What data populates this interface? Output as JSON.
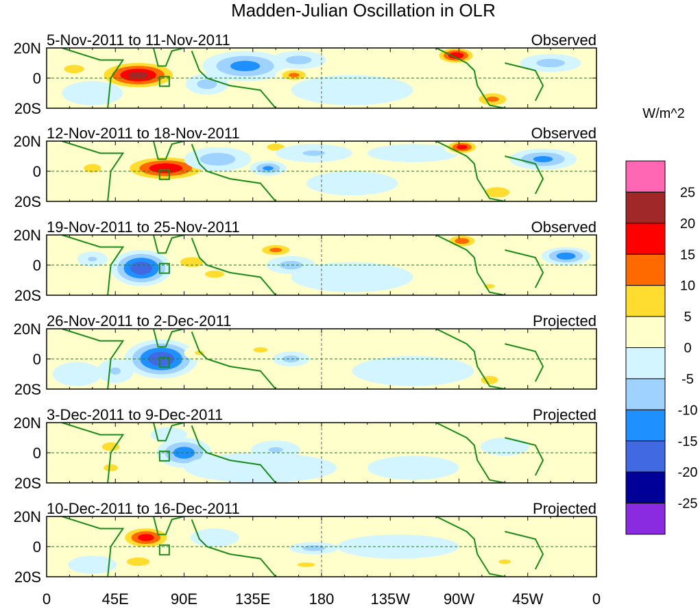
{
  "chart_data": {
    "type": "heatmap",
    "title": "Madden-Julian Oscillation in OLR",
    "units": "W/m^2",
    "x_ticks": [
      "0",
      "45E",
      "90E",
      "135E",
      "180",
      "135W",
      "90W",
      "45W",
      "0"
    ],
    "y_ticks": [
      "20N",
      "0",
      "20S"
    ],
    "xlim": [
      0,
      360
    ],
    "ylim": [
      -20,
      20
    ],
    "colorbar": {
      "labels": [
        "25",
        "20",
        "15",
        "10",
        "5",
        "0",
        "-5",
        "-10",
        "-15",
        "-20",
        "-25"
      ],
      "colors": [
        "#ff66b3",
        "#a02828",
        "#ff0000",
        "#ff6a00",
        "#ffdd30",
        "#ffffcc",
        "#d2f5ff",
        "#a0d2ff",
        "#1e90ff",
        "#4169e1",
        "#000099",
        "#8a2be2"
      ]
    },
    "panels": [
      {
        "date": "5-Nov-2011 to 11-Nov-2011",
        "status": "Observed",
        "blobs": [
          [
            60,
            2,
            28,
            10,
            22
          ],
          [
            18,
            6,
            14,
            6,
            8
          ],
          [
            130,
            8,
            28,
            10,
            -13
          ],
          [
            105,
            -4,
            14,
            7,
            -8
          ],
          [
            162,
            2,
            12,
            5,
            12
          ],
          [
            165,
            12,
            18,
            6,
            -8
          ],
          [
            268,
            15,
            14,
            6,
            20
          ],
          [
            292,
            -14,
            14,
            6,
            12
          ],
          [
            330,
            10,
            20,
            6,
            -8
          ],
          [
            200,
            -8,
            40,
            10,
            -3
          ],
          [
            30,
            -10,
            20,
            8,
            -4
          ]
        ]
      },
      {
        "date": "12-Nov-2011 to 18-Nov-2011",
        "status": "Observed",
        "blobs": [
          [
            78,
            2,
            30,
            9,
            20
          ],
          [
            30,
            2,
            12,
            6,
            8
          ],
          [
            112,
            8,
            22,
            8,
            -9
          ],
          [
            145,
            2,
            12,
            5,
            -12
          ],
          [
            150,
            16,
            10,
            4,
            10
          ],
          [
            175,
            12,
            25,
            6,
            -6
          ],
          [
            240,
            12,
            30,
            6,
            -4
          ],
          [
            272,
            16,
            12,
            5,
            18
          ],
          [
            325,
            8,
            22,
            7,
            -12
          ],
          [
            295,
            -14,
            14,
            6,
            10
          ],
          [
            200,
            -8,
            30,
            8,
            -3
          ]
        ]
      },
      {
        "date": "19-Nov-2011 to 25-Nov-2011",
        "status": "Observed",
        "blobs": [
          [
            62,
            -2,
            20,
            12,
            -20
          ],
          [
            30,
            4,
            10,
            5,
            -6
          ],
          [
            95,
            2,
            16,
            7,
            8
          ],
          [
            110,
            -6,
            16,
            6,
            7
          ],
          [
            150,
            10,
            14,
            5,
            12
          ],
          [
            160,
            0,
            16,
            6,
            -8
          ],
          [
            272,
            16,
            12,
            5,
            14
          ],
          [
            340,
            6,
            16,
            6,
            -14
          ],
          [
            290,
            -14,
            12,
            5,
            6
          ],
          [
            200,
            -8,
            40,
            10,
            -3
          ]
        ]
      },
      {
        "date": "26-Nov-2011 to 2-Dec-2011",
        "status": "Projected",
        "blobs": [
          [
            75,
            0,
            24,
            13,
            -20
          ],
          [
            45,
            -8,
            12,
            8,
            -6
          ],
          [
            100,
            4,
            10,
            5,
            6
          ],
          [
            140,
            6,
            16,
            6,
            6
          ],
          [
            160,
            0,
            12,
            5,
            -8
          ],
          [
            190,
            10,
            30,
            6,
            4
          ],
          [
            290,
            -14,
            12,
            6,
            8
          ],
          [
            20,
            -10,
            16,
            8,
            -4
          ],
          [
            240,
            -8,
            40,
            10,
            -3
          ]
        ]
      },
      {
        "date": "3-Dec-2011 to 9-Dec-2011",
        "status": "Projected",
        "blobs": [
          [
            42,
            4,
            10,
            5,
            10
          ],
          [
            42,
            -10,
            10,
            5,
            8
          ],
          [
            90,
            0,
            18,
            10,
            -14
          ],
          [
            80,
            12,
            12,
            5,
            -5
          ],
          [
            150,
            2,
            16,
            6,
            -6
          ],
          [
            185,
            -6,
            20,
            6,
            5
          ],
          [
            240,
            -10,
            30,
            8,
            -4
          ],
          [
            300,
            4,
            16,
            6,
            -4
          ],
          [
            140,
            -10,
            50,
            10,
            -3
          ]
        ]
      },
      {
        "date": "10-Dec-2011 to 16-Dec-2011",
        "status": "Projected",
        "blobs": [
          [
            65,
            6,
            18,
            8,
            18
          ],
          [
            60,
            -10,
            16,
            6,
            8
          ],
          [
            110,
            6,
            16,
            6,
            -5
          ],
          [
            175,
            -1,
            16,
            4,
            -8
          ],
          [
            170,
            -12,
            20,
            5,
            6
          ],
          [
            300,
            -10,
            14,
            5,
            6
          ],
          [
            230,
            0,
            40,
            8,
            -3
          ],
          [
            30,
            -12,
            16,
            6,
            -4
          ]
        ]
      }
    ]
  }
}
